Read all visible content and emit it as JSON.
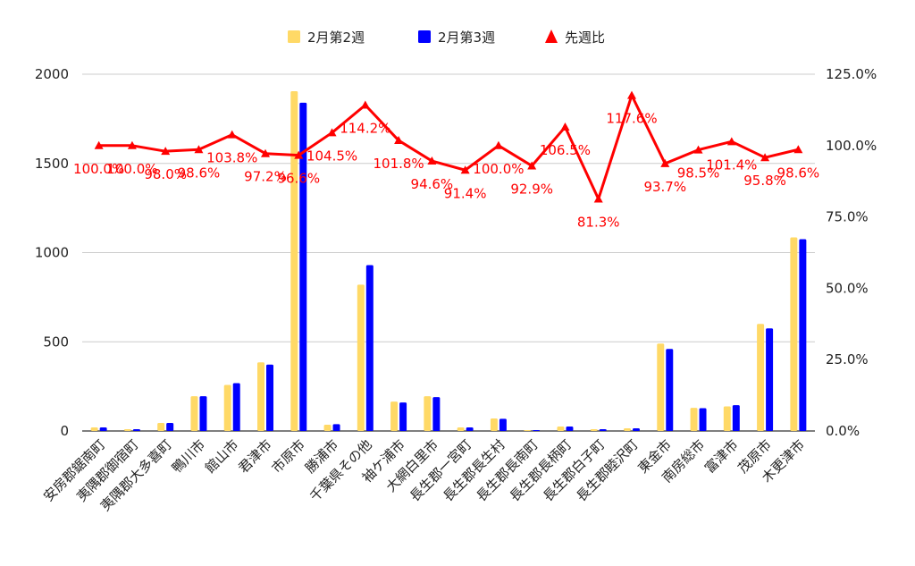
{
  "chart_data": {
    "type": "bar",
    "categories": [
      "安房郡鋸南町",
      "夷隅郡御宿町",
      "夷隅郡大多喜町",
      "鴨川市",
      "館山市",
      "君津市",
      "市原市",
      "勝浦市",
      "千葉県その他",
      "袖ケ浦市",
      "大網白里市",
      "長生郡一宮町",
      "長生郡長生村",
      "長生郡長南町",
      "長生郡長柄町",
      "長生郡白子町",
      "長生郡睦沢町",
      "東金市",
      "南房総市",
      "富津市",
      "茂原市",
      "木更津市"
    ],
    "series": [
      {
        "name": "2月第2週",
        "type": "bar",
        "axis": "left",
        "color": "#FFD966",
        "values": [
          20,
          10,
          45,
          195,
          258,
          385,
          1905,
          35,
          820,
          165,
          195,
          20,
          70,
          5,
          25,
          10,
          15,
          490,
          130,
          138,
          600,
          1085
        ]
      },
      {
        "name": "2月第3週",
        "type": "bar",
        "axis": "left",
        "color": "#0000FF",
        "values": [
          20,
          10,
          45,
          195,
          268,
          372,
          1840,
          38,
          930,
          160,
          190,
          20,
          68,
          5,
          25,
          10,
          15,
          460,
          128,
          145,
          575,
          1075
        ]
      },
      {
        "name": "先週比",
        "type": "line",
        "axis": "right",
        "color": "#FF0000",
        "values": [
          100.0,
          100.0,
          98.0,
          98.6,
          103.8,
          97.2,
          96.6,
          104.5,
          114.2,
          101.8,
          94.6,
          91.4,
          100.0,
          92.9,
          106.5,
          81.3,
          117.6,
          93.7,
          98.5,
          101.4,
          95.8,
          98.6
        ],
        "labels": [
          "100.0%",
          "100.0%",
          "98.0%",
          "98.6%",
          "103.8%",
          "97.2%",
          "96.6%",
          "104.5%",
          "114.2%",
          "101.8%",
          "94.6%",
          "91.4%",
          "100.0%",
          "92.9%",
          "106.5%",
          "81.3%",
          "117.6%",
          "93.7%",
          "98.5%",
          "101.4%",
          "95.8%",
          "98.6%"
        ]
      }
    ],
    "y_left": {
      "min": 0,
      "max": 2000,
      "ticks": [
        "0",
        "500",
        "1000",
        "1500",
        "2000"
      ]
    },
    "y_right": {
      "min": 0,
      "max": 125,
      "ticks": [
        "0.0%",
        "25.0%",
        "50.0%",
        "75.0%",
        "100.0%",
        "125.0%"
      ]
    },
    "grid": true,
    "legend_position": "top"
  }
}
